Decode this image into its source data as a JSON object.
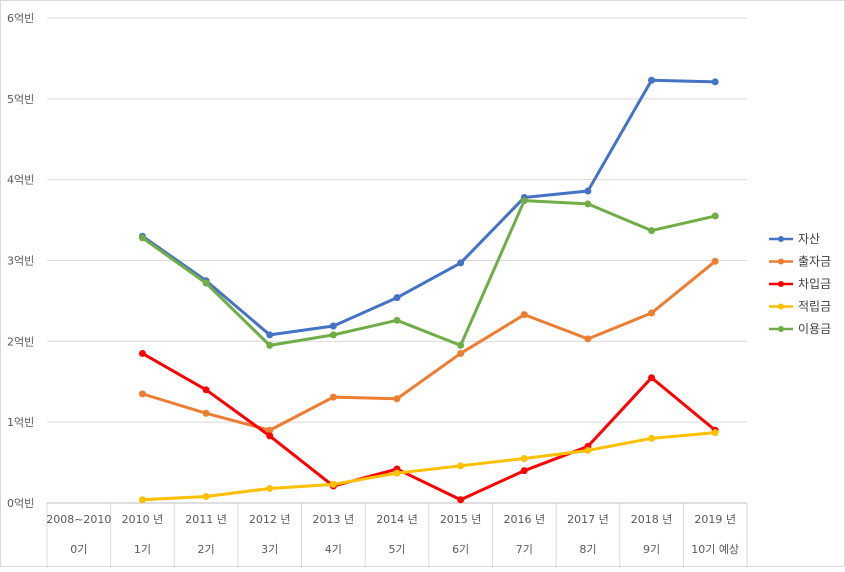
{
  "chart_data": {
    "type": "line",
    "y_unit": "억빈",
    "ylim": [
      0,
      6
    ],
    "yticks": [
      {
        "value": 0,
        "label": "0억빈"
      },
      {
        "value": 1,
        "label": "1억빈"
      },
      {
        "value": 2,
        "label": "2억빈"
      },
      {
        "value": 3,
        "label": "3억빈"
      },
      {
        "value": 4,
        "label": "4억빈"
      },
      {
        "value": 5,
        "label": "5억빈"
      },
      {
        "value": 6,
        "label": "6억빈"
      }
    ],
    "grid": true,
    "legend_position": "right",
    "categories": [
      {
        "year": "2008~2010",
        "term": "0기"
      },
      {
        "year": "2010 년",
        "term": "1기"
      },
      {
        "year": "2011 년",
        "term": "2기"
      },
      {
        "year": "2012 년",
        "term": "3기"
      },
      {
        "year": "2013 년",
        "term": "4기"
      },
      {
        "year": "2014 년",
        "term": "5기"
      },
      {
        "year": "2015 년",
        "term": "6기"
      },
      {
        "year": "2016 년",
        "term": "7기"
      },
      {
        "year": "2017 년",
        "term": "8기"
      },
      {
        "year": "2018 년",
        "term": "9기"
      },
      {
        "year": "2019 년",
        "term": "10기 예상"
      }
    ],
    "series": [
      {
        "name": "자산",
        "color": "#4472c4",
        "values": [
          null,
          3.3,
          2.75,
          2.08,
          2.19,
          2.54,
          2.97,
          3.78,
          3.86,
          5.23,
          5.21
        ]
      },
      {
        "name": "출자금",
        "color": "#ed7d31",
        "values": [
          null,
          1.35,
          1.11,
          0.9,
          1.31,
          1.29,
          1.85,
          2.33,
          2.03,
          2.35,
          2.99
        ]
      },
      {
        "name": "차입금",
        "color": "#ff0000",
        "values": [
          null,
          1.85,
          1.4,
          0.83,
          0.21,
          0.42,
          0.04,
          0.4,
          0.7,
          1.55,
          0.9
        ]
      },
      {
        "name": "적립금",
        "color": "#ffc000",
        "values": [
          null,
          0.04,
          0.08,
          0.18,
          0.23,
          0.37,
          0.46,
          0.55,
          0.65,
          0.8,
          0.87
        ]
      },
      {
        "name": "이용금",
        "color": "#70ad47",
        "values": [
          null,
          3.28,
          2.72,
          1.95,
          2.08,
          2.26,
          1.95,
          3.74,
          3.7,
          3.37,
          3.55
        ]
      }
    ]
  }
}
